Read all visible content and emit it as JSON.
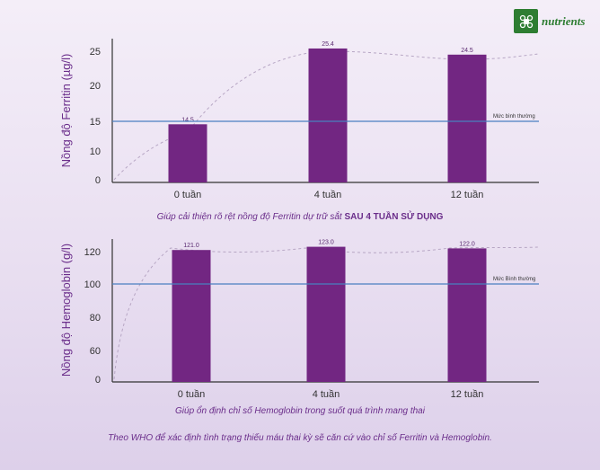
{
  "brand": {
    "name": "nutrients"
  },
  "chart_data": [
    {
      "type": "bar",
      "ylabel": "Nồng độ Ferritin (µg/l)",
      "categories": [
        "0 tuần",
        "4 tuần",
        "12 tuần"
      ],
      "values": [
        14.5,
        25.4,
        24.5
      ],
      "value_labels": [
        "14.5",
        "25.4",
        "24.5"
      ],
      "yticks": [
        "0",
        "10",
        "15",
        "20",
        "25"
      ],
      "reference_line": {
        "label": "Mức bình thường",
        "value": 15
      },
      "caption": "Giúp cải thiện rõ rệt nồng độ Ferritin dự trữ sắt",
      "caption_bold": "SAU 4 TUẦN SỬ DỤNG",
      "colors": {
        "bar": "#722682",
        "reference": "#4a7fc0"
      }
    },
    {
      "type": "bar",
      "ylabel": "Nồng độ Hemoglobin (g/l)",
      "categories": [
        "0 tuần",
        "4 tuần",
        "12 tuần"
      ],
      "values": [
        121.0,
        123.0,
        122.0
      ],
      "value_labels": [
        "121.0",
        "123.0",
        "122.0"
      ],
      "yticks": [
        "0",
        "60",
        "80",
        "100",
        "120"
      ],
      "reference_line": {
        "label": "Mức Bình thường",
        "value": 100
      },
      "caption": "Giúp ổn định chỉ số Hemoglobin trong suốt quá trình mang thai",
      "caption_bold": "",
      "colors": {
        "bar": "#722682",
        "reference": "#4a7fc0"
      }
    }
  ],
  "footnote": "Theo WHO để xác định tình trạng thiếu máu thai kỳ sẽ căn cứ vào chỉ số Ferritin và Hemoglobin."
}
